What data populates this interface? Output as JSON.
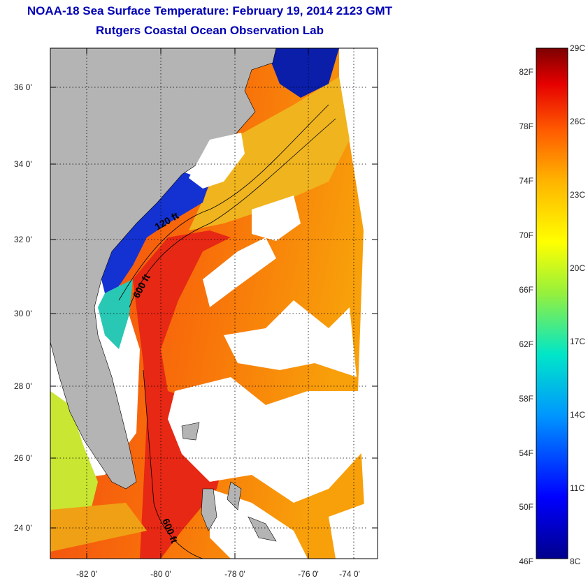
{
  "header": {
    "title": "NOAA-18 Sea Surface Temperature:  February 19, 2014 2123 GMT",
    "subtitle": "Rutgers Coastal Ocean Observation Lab"
  },
  "map": {
    "lat_ticks": [
      "36 0'",
      "34 0'",
      "32 0'",
      "30 0'",
      "28 0'",
      "26 0'",
      "24 0'"
    ],
    "lon_ticks": [
      "-82 0'",
      "-80 0'",
      "-78 0'",
      "-76 0'",
      "-74 0'"
    ],
    "contour_labels": [
      "120 ft",
      "600 ft",
      "600 ft"
    ],
    "colors": {
      "land": "#b4b4b4",
      "cloud": "#ffffff",
      "cold": "#1428c8",
      "warm": "#f03c14"
    }
  },
  "colorbar": {
    "fahrenheit": [
      "82F",
      "78F",
      "74F",
      "70F",
      "66F",
      "62F",
      "58F",
      "54F",
      "50F",
      "46F"
    ],
    "celsius": [
      "29C",
      "26C",
      "23C",
      "20C",
      "17C",
      "14C",
      "11C",
      "8C"
    ]
  }
}
